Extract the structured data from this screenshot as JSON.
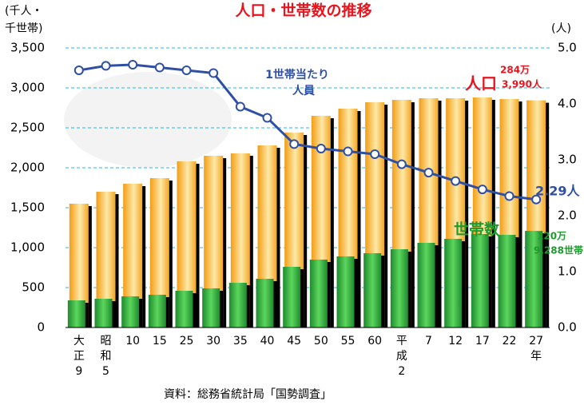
{
  "chart_data": {
    "type": "bar",
    "title": "人口・世帯数の推移",
    "y_label_lines": [
      "(千人・",
      "千世帯)"
    ],
    "y2_label": "(人)",
    "source": "資料：総務省統計局「国勢調査」",
    "categories": [
      "大\n正\n9",
      "昭\n和\n5",
      "10",
      "15",
      "25",
      "30",
      "35",
      "40",
      "45",
      "50",
      "55",
      "60",
      "平\n成\n2",
      "7",
      "12",
      "17",
      "22",
      "27\n年"
    ],
    "series": [
      {
        "name": "人口",
        "type": "bar",
        "color": "#f5a623",
        "values": [
          1550,
          1700,
          1800,
          1870,
          2080,
          2150,
          2180,
          2280,
          2440,
          2650,
          2740,
          2820,
          2850,
          2870,
          2870,
          2880,
          2860,
          2843.99
        ]
      },
      {
        "name": "世帯数",
        "type": "bar",
        "color": "#2ca02c",
        "values": [
          340,
          360,
          390,
          410,
          460,
          490,
          560,
          610,
          760,
          850,
          890,
          930,
          980,
          1060,
          1110,
          1170,
          1160,
          1209.288
        ]
      },
      {
        "name": "1世帯当たり人員",
        "type": "line",
        "axis": "y2",
        "color": "#2e4fa3",
        "values": [
          4.6,
          4.68,
          4.7,
          4.65,
          4.6,
          4.55,
          3.95,
          3.75,
          3.28,
          3.2,
          3.15,
          3.1,
          2.92,
          2.77,
          2.62,
          2.47,
          2.35,
          2.29
        ]
      }
    ],
    "annotations": [
      "1世帯当たり",
      "人員",
      "284万",
      "3,990人",
      "2.29人",
      "120万",
      "9,288世帯"
    ],
    "ylim": [
      0,
      3500
    ],
    "yticks": [
      0,
      500,
      {
        "value": 1000,
        "label": "1,000"
      },
      {
        "value": 1500,
        "label": "1,500"
      },
      {
        "value": 2000,
        "label": "2,000"
      },
      {
        "value": 2500,
        "label": "2,500"
      },
      {
        "value": 3000,
        "label": "3,000"
      },
      {
        "value": 3500,
        "label": "3,500"
      }
    ],
    "y2lim": [
      0,
      5
    ],
    "y2ticks": [
      {
        "value": 0,
        "label": "0.0"
      },
      {
        "value": 1,
        "label": "1.0"
      },
      {
        "value": 2,
        "label": "2.0"
      },
      {
        "value": 3,
        "label": "3.0"
      },
      {
        "value": 4,
        "label": "4.0"
      },
      {
        "value": 5,
        "label": "5.0"
      }
    ],
    "grid": true
  }
}
